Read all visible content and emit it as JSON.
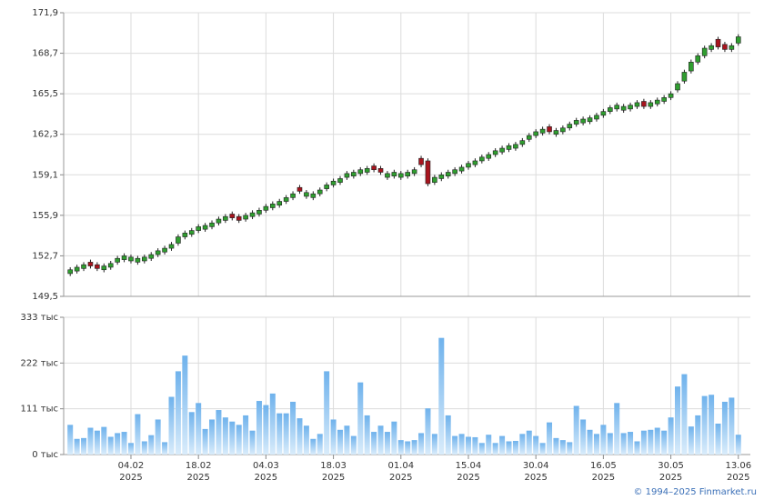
{
  "chart_data": {
    "type": "candlestick",
    "categories": [
      null,
      null,
      null,
      null,
      null,
      null,
      null,
      null,
      null,
      "04.02 2025",
      null,
      null,
      null,
      null,
      null,
      null,
      null,
      null,
      null,
      "18.02 2025",
      null,
      null,
      null,
      null,
      null,
      null,
      null,
      null,
      null,
      "04.03 2025",
      null,
      null,
      null,
      null,
      null,
      null,
      null,
      null,
      null,
      "18.03 2025",
      null,
      null,
      null,
      null,
      null,
      null,
      null,
      null,
      null,
      "01.04 2025",
      null,
      null,
      null,
      null,
      null,
      null,
      null,
      null,
      null,
      "15.04 2025",
      null,
      null,
      null,
      null,
      null,
      null,
      null,
      null,
      null,
      "30.04 2025",
      null,
      null,
      null,
      null,
      null,
      null,
      null,
      null,
      null,
      "16.05 2025",
      null,
      null,
      null,
      null,
      null,
      null,
      null,
      null,
      null,
      "30.05 2025",
      null,
      null,
      null,
      null,
      null,
      null,
      null,
      null,
      null,
      "13.06 2025"
    ],
    "open": [
      151.3,
      151.5,
      151.7,
      152.2,
      152.0,
      151.6,
      151.8,
      152.2,
      152.4,
      152.3,
      152.2,
      152.3,
      152.5,
      152.8,
      153.0,
      153.3,
      153.7,
      154.2,
      154.4,
      154.7,
      154.8,
      155.0,
      155.3,
      155.5,
      156.0,
      155.8,
      155.6,
      155.8,
      156.0,
      156.3,
      156.5,
      156.7,
      157.0,
      157.3,
      158.1,
      157.4,
      157.3,
      157.6,
      158.0,
      158.3,
      158.5,
      158.9,
      159.0,
      159.2,
      159.3,
      159.8,
      159.6,
      158.9,
      159.0,
      158.9,
      159.0,
      159.2,
      160.4,
      160.2,
      158.5,
      158.8,
      159.0,
      159.2,
      159.4,
      159.7,
      159.9,
      160.2,
      160.4,
      160.7,
      160.9,
      161.1,
      161.2,
      161.5,
      161.9,
      162.2,
      162.4,
      162.9,
      162.3,
      162.5,
      162.8,
      163.1,
      163.2,
      163.3,
      163.5,
      163.8,
      164.1,
      164.3,
      164.2,
      164.3,
      164.5,
      164.9,
      164.5,
      164.7,
      164.9,
      165.2,
      165.8,
      166.5,
      167.3,
      168.0,
      168.5,
      169.0,
      169.8,
      169.4,
      169.0,
      169.5
    ],
    "high": [
      151.8,
      152.0,
      152.2,
      152.4,
      152.2,
      152.1,
      152.3,
      152.7,
      152.9,
      152.8,
      152.7,
      152.8,
      153.0,
      153.3,
      153.5,
      153.8,
      154.4,
      154.7,
      154.9,
      155.2,
      155.3,
      155.5,
      155.8,
      156.0,
      156.2,
      156.0,
      156.1,
      156.3,
      156.5,
      156.8,
      157.0,
      157.2,
      157.5,
      157.8,
      158.3,
      157.9,
      157.8,
      158.1,
      158.5,
      158.8,
      159.0,
      159.4,
      159.5,
      159.7,
      159.8,
      160.0,
      159.8,
      159.4,
      159.5,
      159.4,
      159.5,
      159.7,
      160.6,
      160.4,
      159.1,
      159.3,
      159.5,
      159.7,
      159.9,
      160.2,
      160.4,
      160.7,
      160.9,
      161.2,
      161.4,
      161.6,
      161.7,
      162.0,
      162.4,
      162.7,
      162.9,
      163.1,
      162.8,
      163.0,
      163.3,
      163.6,
      163.7,
      163.8,
      164.0,
      164.3,
      164.6,
      164.8,
      164.7,
      164.8,
      165.0,
      165.1,
      165.0,
      165.2,
      165.4,
      165.7,
      166.5,
      167.4,
      168.2,
      168.7,
      169.3,
      169.5,
      170.0,
      169.6,
      169.5,
      170.2
    ],
    "low": [
      151.1,
      151.3,
      151.5,
      151.7,
      151.5,
      151.4,
      151.6,
      152.0,
      152.2,
      152.1,
      152.0,
      152.1,
      152.3,
      152.6,
      152.8,
      153.1,
      153.5,
      154.0,
      154.2,
      154.5,
      154.6,
      154.8,
      155.1,
      155.3,
      155.5,
      155.3,
      155.4,
      155.6,
      155.8,
      156.1,
      156.3,
      156.5,
      156.8,
      157.1,
      157.6,
      157.2,
      157.1,
      157.4,
      157.8,
      158.1,
      158.3,
      158.7,
      158.8,
      159.0,
      159.1,
      159.3,
      159.1,
      158.7,
      158.8,
      158.7,
      158.8,
      159.0,
      159.7,
      158.2,
      158.3,
      158.6,
      158.8,
      159.0,
      159.2,
      159.5,
      159.7,
      160.0,
      160.2,
      160.5,
      160.7,
      160.9,
      161.0,
      161.3,
      161.7,
      162.0,
      162.2,
      162.3,
      162.1,
      162.3,
      162.6,
      162.9,
      163.0,
      163.1,
      163.3,
      163.6,
      163.9,
      164.1,
      164.0,
      164.1,
      164.3,
      164.3,
      164.3,
      164.5,
      164.7,
      165.0,
      165.6,
      166.3,
      167.1,
      167.8,
      168.3,
      168.8,
      169.0,
      168.8,
      168.8,
      169.3
    ],
    "close": [
      151.6,
      151.8,
      152.0,
      151.9,
      151.7,
      151.9,
      152.1,
      152.5,
      152.7,
      152.6,
      152.5,
      152.6,
      152.8,
      153.1,
      153.3,
      153.6,
      154.2,
      154.5,
      154.7,
      155.0,
      155.1,
      155.3,
      155.6,
      155.8,
      155.7,
      155.5,
      155.9,
      156.1,
      156.3,
      156.6,
      156.8,
      157.0,
      157.3,
      157.6,
      157.8,
      157.7,
      157.6,
      157.9,
      158.3,
      158.6,
      158.8,
      159.2,
      159.3,
      159.5,
      159.6,
      159.5,
      159.3,
      159.2,
      159.3,
      159.2,
      159.3,
      159.5,
      159.9,
      158.4,
      158.9,
      159.1,
      159.3,
      159.5,
      159.7,
      160.0,
      160.2,
      160.5,
      160.7,
      161.0,
      161.2,
      161.4,
      161.5,
      161.8,
      162.2,
      162.5,
      162.7,
      162.5,
      162.6,
      162.8,
      163.1,
      163.4,
      163.5,
      163.6,
      163.8,
      164.1,
      164.4,
      164.6,
      164.5,
      164.6,
      164.8,
      164.5,
      164.8,
      165.0,
      165.2,
      165.5,
      166.3,
      167.2,
      168.0,
      168.5,
      169.1,
      169.3,
      169.2,
      169.0,
      169.3,
      170.0
    ],
    "up_color": "#2f9e2f",
    "down_color": "#a8141e",
    "ylim": [
      149.5,
      171.9
    ],
    "yticks": [
      {
        "value": 149.5,
        "label": "149,5"
      },
      {
        "value": 152.7,
        "label": "152,7"
      },
      {
        "value": 155.9,
        "label": "155,9"
      },
      {
        "value": 159.1,
        "label": "159,1"
      },
      {
        "value": 162.3,
        "label": "162,3"
      },
      {
        "value": 165.5,
        "label": "165,5"
      },
      {
        "value": 168.7,
        "label": "168,7"
      },
      {
        "value": 171.9,
        "label": "171,9"
      }
    ],
    "grid": true,
    "volume": {
      "type": "bar",
      "color": "#7bb9ee",
      "values": [
        72,
        38,
        40,
        65,
        58,
        67,
        43,
        52,
        55,
        28,
        98,
        32,
        47,
        85,
        30,
        140,
        202,
        240,
        103,
        125,
        62,
        85,
        108,
        90,
        80,
        72,
        95,
        58,
        130,
        120,
        148,
        100,
        100,
        128,
        88,
        70,
        38,
        50,
        202,
        85,
        60,
        70,
        45,
        175,
        95,
        55,
        70,
        55,
        80,
        35,
        32,
        35,
        52,
        112,
        50,
        283,
        95,
        45,
        50,
        43,
        42,
        28,
        48,
        28,
        45,
        32,
        33,
        50,
        58,
        45,
        28,
        78,
        40,
        35,
        30,
        118,
        85,
        60,
        50,
        72,
        52,
        125,
        52,
        55,
        32,
        58,
        60,
        65,
        58,
        90,
        165,
        195,
        68,
        95,
        142,
        145,
        75,
        128,
        138,
        48
      ],
      "ylim": [
        0,
        333
      ],
      "yticks": [
        {
          "value": 0,
          "label": "0 тыс"
        },
        {
          "value": 111,
          "label": "111 тыс"
        },
        {
          "value": 222,
          "label": "222 тыс"
        },
        {
          "value": 333,
          "label": "333 тыс"
        }
      ]
    }
  },
  "footer": "© 1994–2025 Finmarket.ru"
}
